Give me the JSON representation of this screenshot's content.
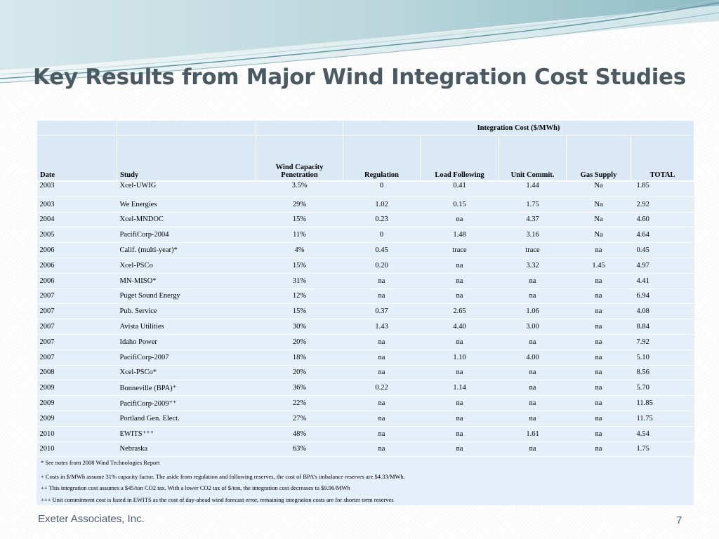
{
  "slide": {
    "title": "Key Results from Major Wind Integration Cost Studies",
    "footer_left": "Exeter Associates, Inc.",
    "page_number": "7"
  },
  "colors": {
    "title": "#4a5a63",
    "table_bg": "#e4effa",
    "header_bg": "#dbe9f6",
    "swoosh_teal": "#6fa8b3",
    "swoosh_light": "#c9e1e6"
  },
  "table": {
    "group_header": "Integration Cost ($/MWh)",
    "columns": [
      "Date",
      "Study",
      "Wind Capacity Penetration",
      "Regulation",
      "Load Following",
      "Unit Commit.",
      "Gas Supply",
      "TOTAL"
    ],
    "col_wind_line1": "Wind Capacity",
    "col_wind_line2": "Penetration",
    "rows": [
      {
        "date": "2003",
        "study": "Xcel-UWIG",
        "wind": "3.5%",
        "reg": "0",
        "load": "0.41",
        "unit": "1.44",
        "gas": "Na",
        "total": "1.85"
      },
      {
        "date": "2003",
        "study": "We Energies",
        "wind": "29%",
        "reg": "1.02",
        "load": "0.15",
        "unit": "1.75",
        "gas": "Na",
        "total": "2.92"
      },
      {
        "date": "2004",
        "study": "Xcel-MNDOC",
        "wind": "15%",
        "reg": "0.23",
        "load": "na",
        "unit": "4.37",
        "gas": "Na",
        "total": "4.60"
      },
      {
        "date": "2005",
        "study": "PacifiCorp-2004",
        "wind": "11%",
        "reg": "0",
        "load": "1.48",
        "unit": "3.16",
        "gas": "Na",
        "total": "4.64"
      },
      {
        "date": "2006",
        "study": "Calif. (multi-year)*",
        "wind": "4%",
        "reg": "0.45",
        "load": "trace",
        "unit": "trace",
        "gas": "na",
        "total": "0.45"
      },
      {
        "date": "2006",
        "study": "Xcel-PSCo",
        "wind": "15%",
        "reg": "0.20",
        "load": "na",
        "unit": "3.32",
        "gas": "1.45",
        "total": "4.97"
      },
      {
        "date": "2006",
        "study": "MN-MISO*",
        "wind": "31%",
        "reg": "na",
        "load": "na",
        "unit": "na",
        "gas": "na",
        "total": "4.41"
      },
      {
        "date": "2007",
        "study": "Puget Sound Energy",
        "wind": "12%",
        "reg": "na",
        "load": "na",
        "unit": "na",
        "gas": "na",
        "total": "6.94"
      },
      {
        "date": "2007",
        "study": "Pub. Service",
        "wind": "15%",
        "reg": "0.37",
        "load": "2.65",
        "unit": "1.06",
        "gas": "na",
        "total": "4.08"
      },
      {
        "date": "2007",
        "study": "Avista Utilities",
        "wind": "30%",
        "reg": "1.43",
        "load": "4.40",
        "unit": "3.00",
        "gas": "na",
        "total": "8.84"
      },
      {
        "date": "2007",
        "study": "Idaho Power",
        "wind": "20%",
        "reg": "na",
        "load": "na",
        "unit": "na",
        "gas": "na",
        "total": "7.92"
      },
      {
        "date": "2007",
        "study": "PacifiCorp-2007",
        "wind": "18%",
        "reg": "na",
        "load": "1.10",
        "unit": "4.00",
        "gas": "na",
        "total": "5.10"
      },
      {
        "date": "2008",
        "study": "Xcel-PSCo*",
        "wind": "20%",
        "reg": "na",
        "load": "na",
        "unit": "na",
        "gas": "na",
        "total": "8.56"
      },
      {
        "date": "2009",
        "study": "Bonneville (BPA)⁺",
        "wind": "36%",
        "reg": "0.22",
        "load": "1.14",
        "unit": "na",
        "gas": "na",
        "total": "5.70"
      },
      {
        "date": "2009",
        "study": "PacifiCorp-2009⁺⁺",
        "wind": "22%",
        "reg": "na",
        "load": "na",
        "unit": "na",
        "gas": "na",
        "total": "11.85"
      },
      {
        "date": "2009",
        "study": "Portland Gen. Elect.",
        "wind": "27%",
        "reg": "na",
        "load": "na",
        "unit": "na",
        "gas": "na",
        "total": "11.75"
      },
      {
        "date": "2010",
        "study": "EWITS⁺⁺⁺",
        "wind": "48%",
        "reg": "na",
        "load": "na",
        "unit": "1.61",
        "gas": "na",
        "total": "4.54"
      },
      {
        "date": "2010",
        "study": "Nebraska",
        "wind": "63%",
        "reg": "na",
        "load": "na",
        "unit": "na",
        "gas": "na",
        "total": "1.75"
      }
    ]
  },
  "notes": [
    "* See notes from 2008 Wind Technologies Report",
    "+ Costs in $/MWh assume 31% capacity factor.  The aside from regulation and following reserves, the cost of BPA’s imbalance reserves are $4.33/MWh.",
    "++ This integration cost assumes a $45/ton CO2 tax.  With a lower CO2 tax of $/ton, the integration cost decreases to $9.96/MWh",
    "+++  Unit commitment cost is listed in EWITS as the cost of day-ahead wind forecast error, remaining integration costs are for shorter term reserves"
  ]
}
